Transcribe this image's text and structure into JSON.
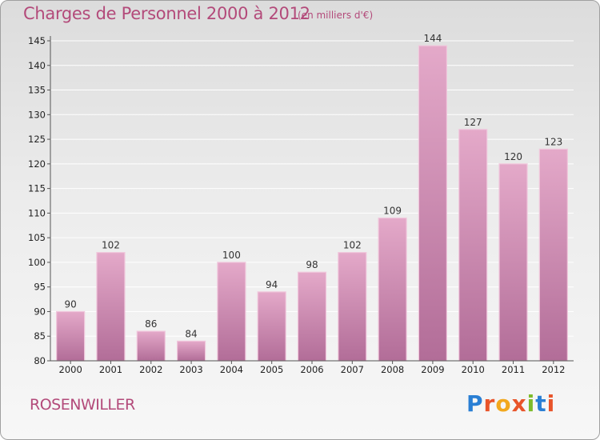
{
  "header": {
    "title": "Charges de Personnel 2000 à 2012",
    "subtitle": "(en milliers d'€)"
  },
  "footer": {
    "commune": "ROSENWILLER",
    "logo_text": "Proxiti",
    "logo_colors": [
      "#2a7fd4",
      "#e8542a",
      "#f2a81d",
      "#e8542a",
      "#7dbb2a",
      "#2a7fd4",
      "#e8542a"
    ]
  },
  "colors": {
    "bar_fill": "#d58cb4",
    "bar_edge": "#f0c7dc",
    "title": "#b34a7a"
  },
  "chart_data": {
    "type": "bar",
    "title": "Charges de Personnel 2000 à 2012",
    "subtitle": "(en milliers d'€)",
    "categories": [
      "2000",
      "2001",
      "2002",
      "2003",
      "2004",
      "2005",
      "2006",
      "2007",
      "2008",
      "2009",
      "2010",
      "2011",
      "2012"
    ],
    "values": [
      90,
      102,
      86,
      84,
      100,
      94,
      98,
      102,
      109,
      144,
      127,
      120,
      123
    ],
    "ylim": [
      80,
      145
    ],
    "yticks": [
      80,
      85,
      90,
      95,
      100,
      105,
      110,
      115,
      120,
      125,
      130,
      135,
      140,
      145
    ],
    "grid": true,
    "legend": "none"
  }
}
